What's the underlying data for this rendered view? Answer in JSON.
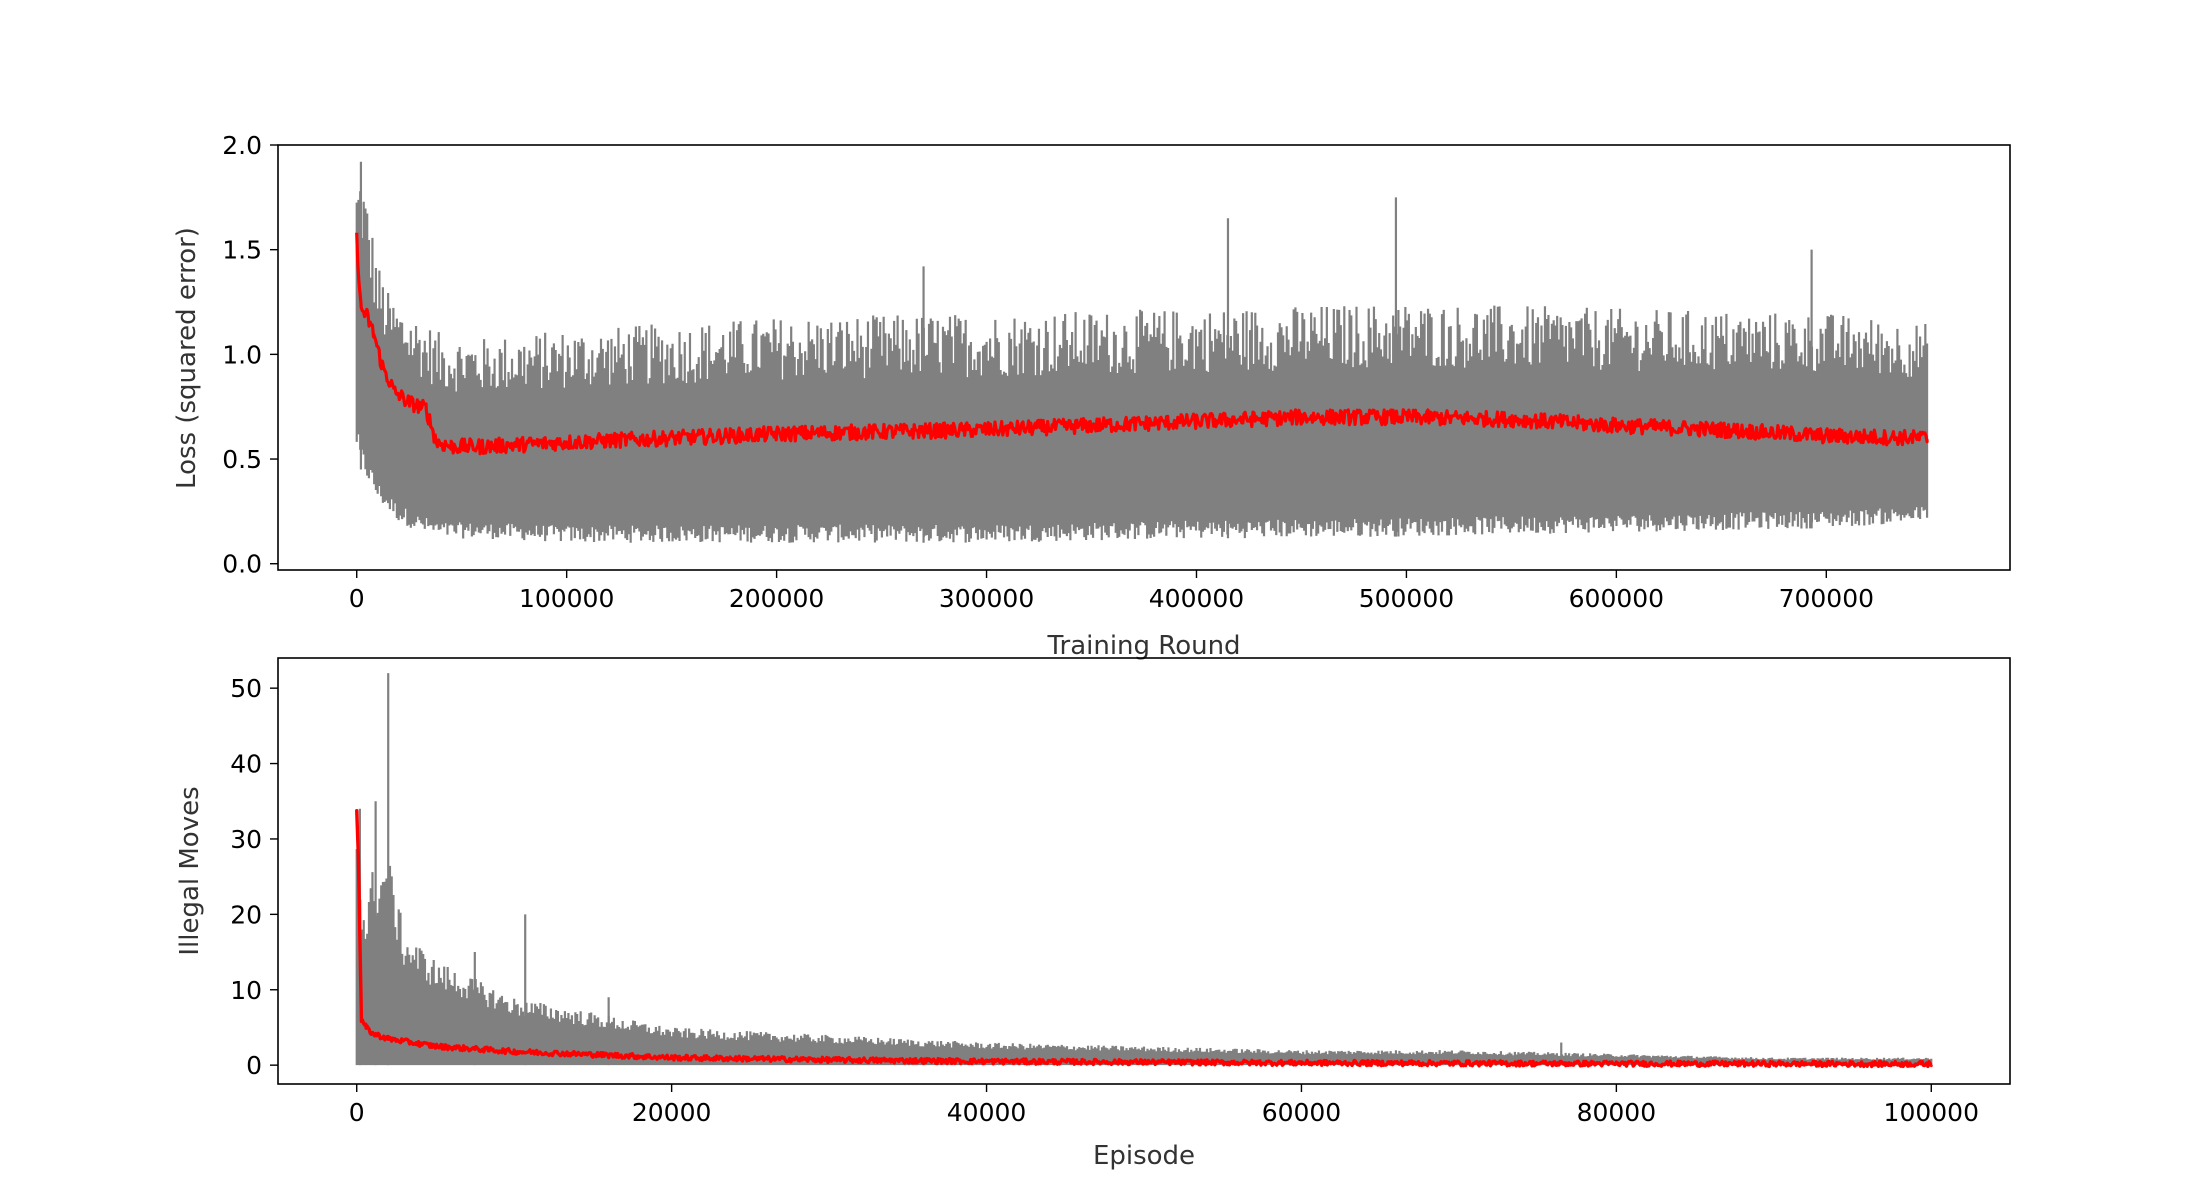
{
  "chart_data": [
    {
      "type": "line",
      "xlabel": "Training Round",
      "ylabel": "Loss (squared error)",
      "xlim": [
        -37500,
        787500
      ],
      "ylim": [
        -0.03,
        2.0
      ],
      "xticks": [
        0,
        100000,
        200000,
        300000,
        400000,
        500000,
        600000,
        700000
      ],
      "xtick_labels": [
        "0",
        "100000",
        "200000",
        "300000",
        "400000",
        "500000",
        "600000",
        "700000"
      ],
      "yticks": [
        0.0,
        0.5,
        1.0,
        1.5,
        2.0
      ],
      "ytick_labels": [
        "0.0",
        "0.5",
        "1.0",
        "1.5",
        "2.0"
      ],
      "grid": false,
      "series": [
        {
          "role": "raw",
          "color": "#808080",
          "x": [
            0,
            2000,
            5000,
            10000,
            15000,
            20000,
            30000,
            40000,
            60000,
            100000,
            200000,
            300000,
            400000,
            500000,
            600000,
            700000,
            748000
          ],
          "upper": [
            1.85,
            1.92,
            1.75,
            1.45,
            1.3,
            1.25,
            1.18,
            1.1,
            1.08,
            1.12,
            1.18,
            1.2,
            1.22,
            1.25,
            1.22,
            1.2,
            1.15
          ],
          "lower": [
            0.55,
            0.45,
            0.4,
            0.3,
            0.25,
            0.2,
            0.15,
            0.12,
            0.12,
            0.1,
            0.1,
            0.1,
            0.12,
            0.13,
            0.15,
            0.17,
            0.2
          ],
          "spikes": [
            {
              "x": 2000,
              "y": 1.92
            },
            {
              "x": 270000,
              "y": 1.42
            },
            {
              "x": 415000,
              "y": 1.65
            },
            {
              "x": 495000,
              "y": 1.75
            },
            {
              "x": 693000,
              "y": 1.5
            }
          ]
        },
        {
          "role": "moving-average",
          "color": "#ff0000",
          "x": [
            0,
            2000,
            5000,
            8000,
            12000,
            18000,
            25000,
            33000,
            38000,
            45000,
            60000,
            100000,
            200000,
            300000,
            400000,
            450000,
            500000,
            550000,
            600000,
            650000,
            700000,
            748000
          ],
          "values": [
            1.55,
            1.22,
            1.18,
            1.1,
            0.95,
            0.82,
            0.77,
            0.74,
            0.58,
            0.56,
            0.56,
            0.58,
            0.62,
            0.64,
            0.68,
            0.7,
            0.7,
            0.69,
            0.66,
            0.64,
            0.61,
            0.6
          ]
        }
      ]
    },
    {
      "type": "line",
      "xlabel": "Episode",
      "ylabel": "Illegal Moves",
      "xlim": [
        -5000,
        105000
      ],
      "ylim": [
        -2.5,
        54
      ],
      "xticks": [
        0,
        20000,
        40000,
        60000,
        80000,
        100000
      ],
      "xtick_labels": [
        "0",
        "20000",
        "40000",
        "60000",
        "80000",
        "100000"
      ],
      "yticks": [
        0,
        10,
        20,
        30,
        40,
        50
      ],
      "ytick_labels": [
        "0",
        "10",
        "20",
        "30",
        "40",
        "50"
      ],
      "grid": false,
      "series": [
        {
          "role": "raw",
          "color": "#808080",
          "x": [
            0,
            500,
            1000,
            2000,
            3000,
            5000,
            8000,
            10000,
            15000,
            20000,
            30000,
            40000,
            50000,
            60000,
            70000,
            80000,
            90000,
            100000
          ],
          "upper": [
            34,
            20,
            26,
            28,
            18,
            14,
            11,
            9,
            7,
            5,
            4,
            3,
            2.5,
            2,
            2,
            1.5,
            1,
            1
          ],
          "spikes": [
            {
              "x": 200,
              "y": 34
            },
            {
              "x": 1200,
              "y": 35
            },
            {
              "x": 2000,
              "y": 52
            },
            {
              "x": 7500,
              "y": 15
            },
            {
              "x": 10700,
              "y": 20
            },
            {
              "x": 16000,
              "y": 9
            },
            {
              "x": 76500,
              "y": 3
            }
          ]
        },
        {
          "role": "moving-average",
          "color": "#ff0000",
          "x": [
            0,
            100,
            300,
            600,
            1000,
            2000,
            5000,
            10000,
            15000,
            20000,
            30000,
            40000,
            50000,
            60000,
            80000,
            100000
          ],
          "values": [
            34,
            28,
            6,
            5,
            4.2,
            3.5,
            2.5,
            1.8,
            1.4,
            1.0,
            0.7,
            0.5,
            0.4,
            0.3,
            0.2,
            0.15
          ]
        }
      ]
    }
  ]
}
